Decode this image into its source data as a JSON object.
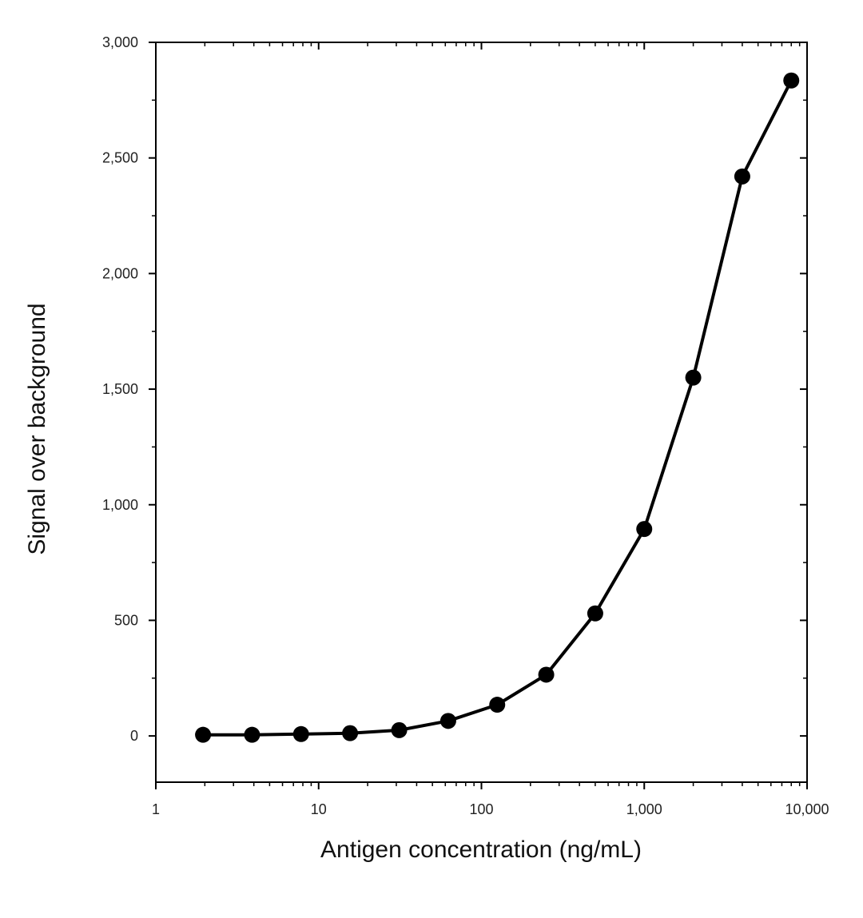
{
  "chart_data": {
    "type": "line",
    "title": "",
    "xlabel": "Antigen concentration (ng/mL)",
    "ylabel": "Signal over background",
    "x_scale": "log",
    "xlim": [
      1,
      10000
    ],
    "ylim": [
      -200,
      3000
    ],
    "x_ticks": [
      1,
      10,
      100,
      1000,
      10000
    ],
    "x_tick_labels": [
      "1",
      "10",
      "100",
      "1,000",
      "10,000"
    ],
    "y_ticks": [
      0,
      500,
      1000,
      1500,
      2000,
      2500,
      3000
    ],
    "y_tick_labels": [
      "0",
      "500",
      "1,000",
      "1,500",
      "2,000",
      "2,500",
      "3,000"
    ],
    "grid": false,
    "series": [
      {
        "x": [
          1.95,
          3.9,
          7.8,
          15.6,
          31.25,
          62.5,
          125,
          250,
          500,
          1000,
          2000,
          4000,
          8000
        ],
        "y": [
          5,
          5,
          8,
          12,
          25,
          65,
          135,
          265,
          530,
          895,
          1550,
          2420,
          2835
        ],
        "marker": "circle",
        "color": "#000000"
      }
    ]
  }
}
